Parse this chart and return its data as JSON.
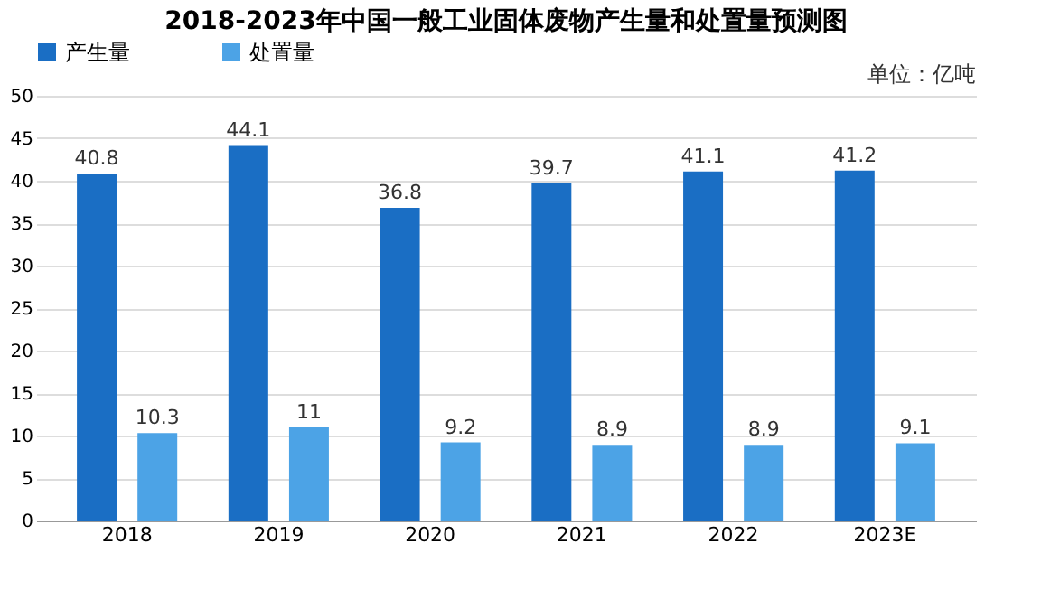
{
  "chart_data": {
    "type": "bar",
    "title": "2018-2023年中国一般工业固体废物产生量和处置量预测图",
    "categories": [
      "2018",
      "2019",
      "2020",
      "2021",
      "2022",
      "2023E"
    ],
    "series": [
      {
        "name": "产生量",
        "color": "#1a6ec4",
        "values": [
          40.8,
          44.1,
          36.8,
          39.7,
          41.1,
          41.2
        ]
      },
      {
        "name": "处置量",
        "color": "#4ca3e6",
        "values": [
          10.3,
          11,
          9.2,
          8.9,
          8.9,
          9.1
        ]
      }
    ],
    "ylim": [
      0,
      50
    ],
    "yticks": [
      0,
      5,
      10,
      15,
      20,
      25,
      30,
      35,
      40,
      45,
      50
    ],
    "grid": "y",
    "legend": "top",
    "data_labels": true,
    "annotations": [
      "单位：亿吨"
    ]
  }
}
